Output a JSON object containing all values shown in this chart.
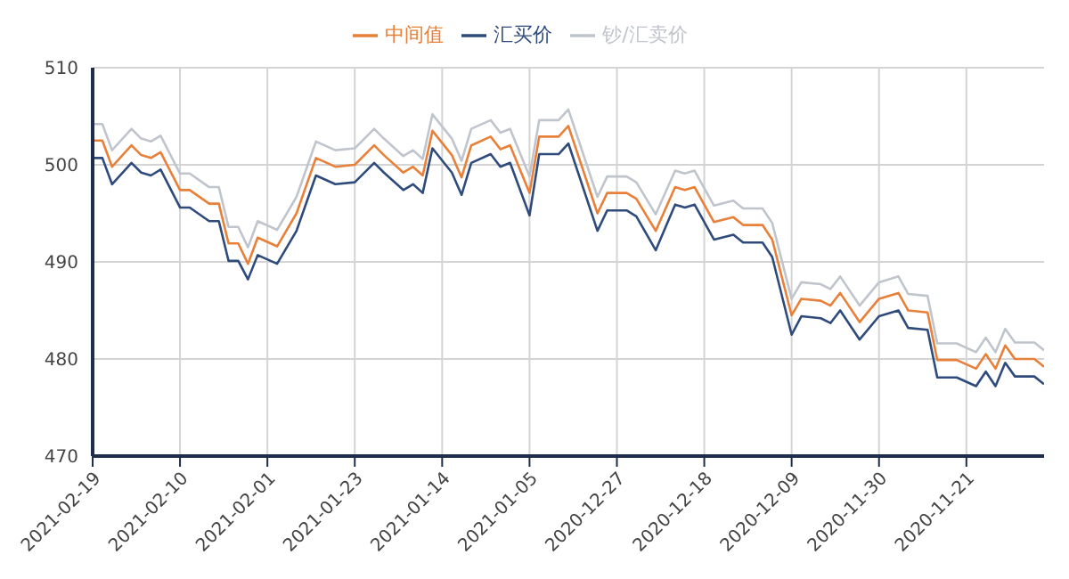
{
  "chart_data": {
    "type": "line",
    "x": [
      "2021-02-19",
      "2021-02-18",
      "2021-02-17",
      "2021-02-15",
      "2021-02-14",
      "2021-02-13",
      "2021-02-12",
      "2021-02-10",
      "2021-02-09",
      "2021-02-07",
      "2021-02-06",
      "2021-02-05",
      "2021-02-04",
      "2021-02-03",
      "2021-02-02",
      "2021-01-31",
      "2021-01-29",
      "2021-01-27",
      "2021-01-25",
      "2021-01-23",
      "2021-01-21",
      "2021-01-20",
      "2021-01-18",
      "2021-01-17",
      "2021-01-16",
      "2021-01-15",
      "2021-01-13",
      "2021-01-12",
      "2021-01-11",
      "2021-01-09",
      "2021-01-08",
      "2021-01-07",
      "2021-01-05",
      "2021-01-04",
      "2021-01-02",
      "2021-01-01",
      "2020-12-29",
      "2020-12-28",
      "2020-12-26",
      "2020-12-25",
      "2020-12-23",
      "2020-12-21",
      "2020-12-20",
      "2020-12-19",
      "2020-12-17",
      "2020-12-15",
      "2020-12-14",
      "2020-12-12",
      "2020-12-11",
      "2020-12-09",
      "2020-12-08",
      "2020-12-06",
      "2020-12-05",
      "2020-12-04",
      "2020-12-02",
      "2020-11-30",
      "2020-11-28",
      "2020-11-27",
      "2020-11-25",
      "2020-11-24",
      "2020-11-22",
      "2020-11-20",
      "2020-11-19",
      "2020-11-18",
      "2020-11-17",
      "2020-11-16",
      "2020-11-14",
      "2020-11-13"
    ],
    "series": [
      {
        "name": "中间值",
        "color": "#e8803a",
        "values": [
          502.5,
          502.5,
          499.8,
          502,
          501,
          500.7,
          501.3,
          497.4,
          497.4,
          496,
          496,
          491.9,
          491.9,
          489.8,
          492.5,
          491.6,
          495,
          500.7,
          499.8,
          500,
          502,
          501,
          499.2,
          499.8,
          498.9,
          503.5,
          501,
          498.7,
          502,
          502.9,
          501.6,
          502,
          497.1,
          502.9,
          502.9,
          504,
          495,
          497.1,
          497.1,
          496.5,
          493.2,
          497.7,
          497.4,
          497.7,
          494.1,
          494.6,
          493.8,
          493.8,
          492.3,
          484.5,
          486.2,
          486,
          485.5,
          486.8,
          483.8,
          486.2,
          486.8,
          485,
          484.8,
          479.9,
          479.9,
          479,
          480.5,
          479,
          481.4,
          480,
          480,
          479.2
        ]
      },
      {
        "name": "汇买价",
        "color": "#2f4b7c",
        "values": [
          500.7,
          500.7,
          498,
          500.2,
          499.2,
          498.9,
          499.5,
          495.6,
          495.6,
          494.2,
          494.2,
          490.1,
          490.1,
          488.2,
          490.7,
          489.8,
          493.2,
          498.9,
          498,
          498.2,
          500.2,
          499.2,
          497.4,
          498,
          497.1,
          501.7,
          499.2,
          496.9,
          500.2,
          501.1,
          499.8,
          500.2,
          494.8,
          501.1,
          501.1,
          502.2,
          493.2,
          495.3,
          495.3,
          494.7,
          491.2,
          495.9,
          495.6,
          495.9,
          492.3,
          492.8,
          492,
          492,
          490.5,
          482.5,
          484.4,
          484.2,
          483.7,
          485,
          482,
          484.4,
          485,
          483.2,
          483,
          478.1,
          478.1,
          477.2,
          478.7,
          477.2,
          479.6,
          478.2,
          478.2,
          477.4
        ]
      },
      {
        "name": "钞/汇卖价",
        "color": "#c0c4cc",
        "values": [
          504.2,
          504.2,
          501.5,
          503.7,
          502.7,
          502.4,
          503,
          499.1,
          499.1,
          497.7,
          497.7,
          493.6,
          493.6,
          491.5,
          494.2,
          493.3,
          496.7,
          502.4,
          501.5,
          501.7,
          503.7,
          502.7,
          500.9,
          501.5,
          500.6,
          505.2,
          502.7,
          500.4,
          503.7,
          504.6,
          503.3,
          503.7,
          498.8,
          504.6,
          504.6,
          505.7,
          496.7,
          498.8,
          498.8,
          498.2,
          494.9,
          499.4,
          499.1,
          499.4,
          495.8,
          496.3,
          495.5,
          495.5,
          494,
          486.2,
          487.9,
          487.7,
          487.2,
          488.5,
          485.5,
          487.9,
          488.5,
          486.7,
          486.5,
          481.6,
          481.6,
          480.7,
          482.2,
          480.7,
          483.1,
          481.7,
          481.7,
          480.9
        ]
      }
    ],
    "xlim": [
      "2021-02-19",
      "2020-11-13"
    ],
    "xticks": [
      "2021-02-19",
      "2021-02-10",
      "2021-02-01",
      "2021-01-23",
      "2021-01-14",
      "2021-01-05",
      "2020-12-27",
      "2020-12-18",
      "2020-12-09",
      "2020-11-30",
      "2020-11-21"
    ],
    "ylim": [
      470,
      510
    ],
    "yticks": [
      470,
      480,
      490,
      500,
      510
    ],
    "grid": true,
    "legend": "top",
    "marker": "none",
    "line_style": "solid"
  }
}
